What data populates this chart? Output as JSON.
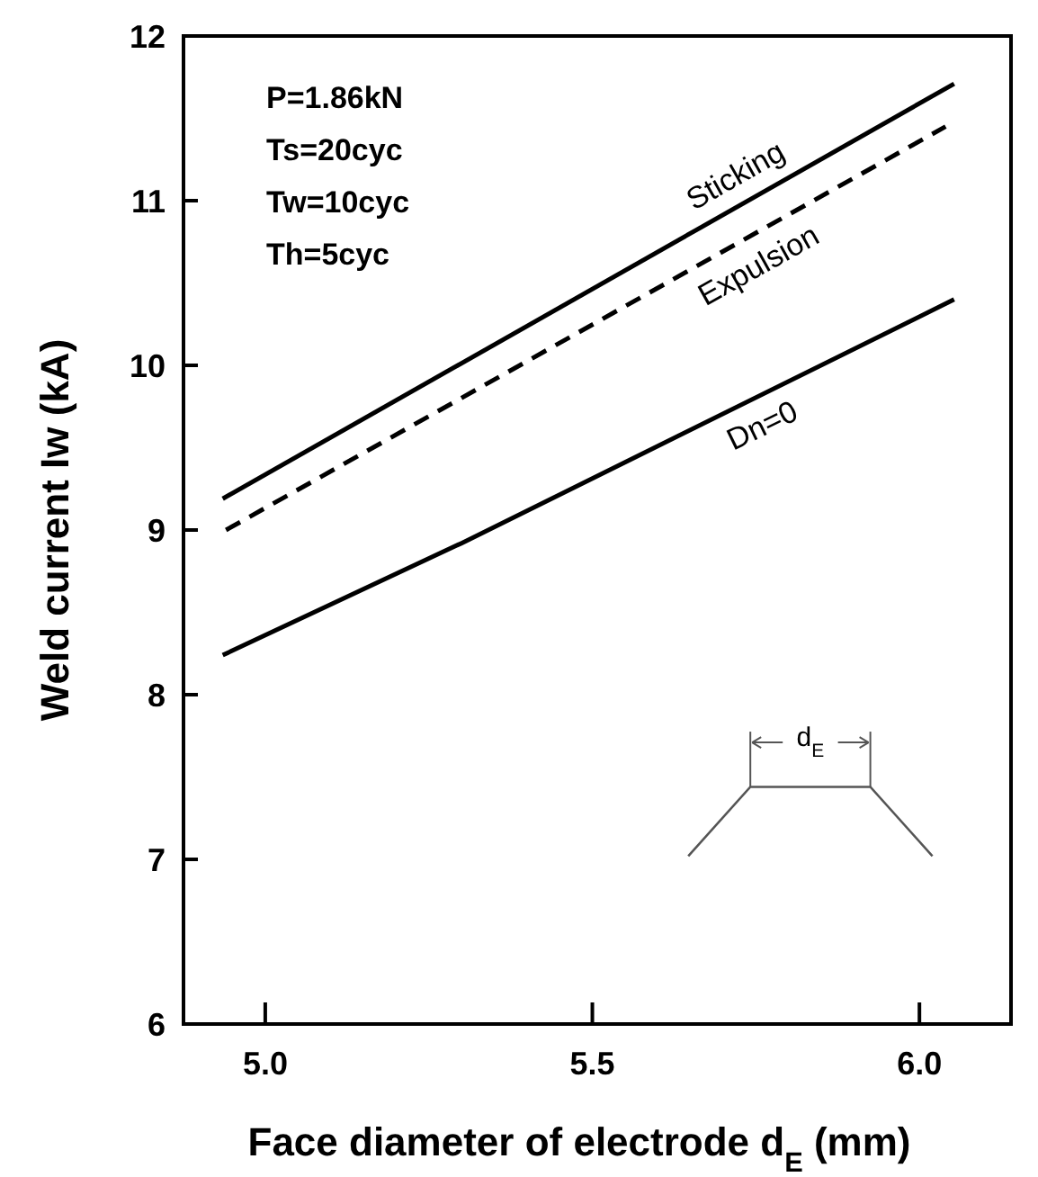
{
  "chart_data": {
    "type": "line",
    "xlabel": "Face diameter of electrode  d$_{E}$ (mm)",
    "ylabel": "Weld current  Iw  (kA)",
    "xlim": [
      4.875,
      6.14
    ],
    "xticks": [
      {
        "value": 5,
        "label": "5.0"
      },
      5.5,
      {
        "value": 6,
        "label": "6.0"
      }
    ],
    "ylim": [
      6,
      12
    ],
    "yticks": [
      6,
      7,
      8,
      9,
      10,
      11,
      12
    ],
    "grid": false,
    "marker": "none",
    "series": [
      {
        "name": "Sticking",
        "color": "#000000",
        "line_style": "solid",
        "x": [
          4.935,
          6.053
        ],
        "values": [
          9.19,
          11.71
        ]
      },
      {
        "name": "Expulsion",
        "color": "#000000",
        "line_style": "dashed",
        "x": [
          4.94,
          6.04
        ],
        "values": [
          9.0,
          11.45
        ]
      },
      {
        "name": "Dn=0",
        "color": "#000000",
        "line_style": "solid",
        "x": [
          4.935,
          5.3,
          6.053
        ],
        "values": [
          8.24,
          8.92,
          10.4
        ]
      }
    ],
    "annotations": [
      "P=1.86kN",
      "Ts=20cyc",
      "Tw=10cyc",
      "Th=5cyc",
      "d$_{E}$"
    ]
  }
}
